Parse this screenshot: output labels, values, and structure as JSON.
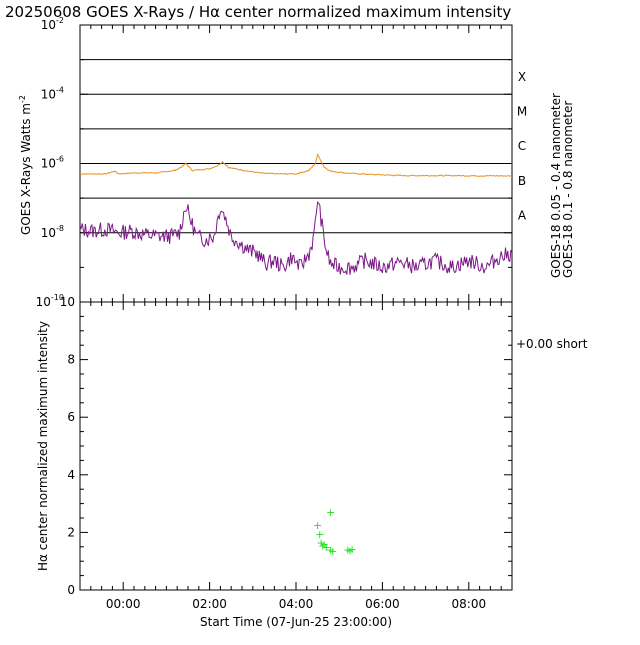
{
  "title": "20250608 GOES X-Rays / Hα center normalized maximum intensity",
  "xaxis": {
    "label": "Start Time (07-Jun-25 23:00:00)",
    "range_hours": [
      -1.0,
      9.0
    ],
    "ticks": [
      {
        "value": 0,
        "label": "00:00"
      },
      {
        "value": 2,
        "label": "02:00"
      },
      {
        "value": 4,
        "label": "04:00"
      },
      {
        "value": 6,
        "label": "06:00"
      },
      {
        "value": 8,
        "label": "08:00"
      }
    ]
  },
  "colors": {
    "goes_long": "#e8901c",
    "goes_short": "#7a1a86",
    "halpha": "#22dd22",
    "axis": "#000000"
  },
  "chart_data": [
    {
      "type": "line",
      "title": "20250608 GOES X-Rays",
      "ylabel_main": "GOES X-Rays Watts m",
      "ylabel_sup": "-2",
      "yscale": "log",
      "ylim_exp": [
        -10,
        -2
      ],
      "yticks": [
        {
          "base": "10",
          "exp": "-2",
          "value_exp": -2
        },
        {
          "base": "10",
          "exp": "-4",
          "value_exp": -4
        },
        {
          "base": "10",
          "exp": "-6",
          "value_exp": -6
        },
        {
          "base": "10",
          "exp": "-8",
          "value_exp": -8
        },
        {
          "base": "10",
          "exp": "-10",
          "value_exp": -10
        }
      ],
      "flare_levels": [
        {
          "label": "X",
          "value_exp": -4
        },
        {
          "label": "M",
          "value_exp": -5
        },
        {
          "label": "C",
          "value_exp": -6
        },
        {
          "label": "B",
          "value_exp": -7
        },
        {
          "label": "A",
          "value_exp": -8
        }
      ],
      "flare_lines_exp": [
        -3,
        -4,
        -5,
        -6,
        -7,
        -8
      ],
      "legend": [
        {
          "name": "GOES-18 0.05 - 0.4 nanometer",
          "series": "short"
        },
        {
          "name": "GOES-18 0.1 - 0.8 nanometer",
          "series": "long"
        }
      ],
      "series": [
        {
          "name": "GOES-18 0.1 - 0.8 nanometer",
          "key": "long",
          "x": [
            -1.0,
            -0.4,
            -0.2,
            -0.1,
            0.3,
            0.8,
            1.2,
            1.35,
            1.45,
            1.6,
            2.0,
            2.2,
            2.3,
            2.45,
            2.8,
            3.2,
            3.6,
            4.0,
            4.3,
            4.45,
            4.5,
            4.55,
            4.65,
            4.8,
            5.2,
            5.8,
            6.5,
            7.5,
            9.0
          ],
          "y_exp": [
            -6.3,
            -6.3,
            -6.22,
            -6.3,
            -6.27,
            -6.27,
            -6.2,
            -6.1,
            -6.0,
            -6.2,
            -6.15,
            -6.05,
            -5.95,
            -6.12,
            -6.2,
            -6.28,
            -6.3,
            -6.3,
            -6.2,
            -6.0,
            -5.75,
            -5.85,
            -6.1,
            -6.22,
            -6.28,
            -6.32,
            -6.35,
            -6.35,
            -6.36
          ]
        },
        {
          "name": "GOES-18 0.05 - 0.4 nanometer",
          "key": "short",
          "x": [
            -1.0,
            -0.7,
            -0.4,
            -0.1,
            0.2,
            0.5,
            0.8,
            1.1,
            1.3,
            1.45,
            1.55,
            1.7,
            1.9,
            2.1,
            2.25,
            2.35,
            2.5,
            2.7,
            2.9,
            3.1,
            3.3,
            3.5,
            3.7,
            3.9,
            4.1,
            4.3,
            4.42,
            4.5,
            4.58,
            4.65,
            4.72,
            4.8,
            5.0,
            5.3,
            5.6,
            6.0,
            6.4,
            6.8,
            7.2,
            7.6,
            8.0,
            8.4,
            8.7,
            9.0
          ],
          "y_exp": [
            -7.9,
            -7.95,
            -7.9,
            -8.0,
            -7.95,
            -8.05,
            -8.1,
            -8.1,
            -8.0,
            -7.2,
            -7.6,
            -8.1,
            -8.2,
            -8.1,
            -7.25,
            -7.5,
            -8.1,
            -8.3,
            -8.5,
            -8.6,
            -8.9,
            -8.8,
            -9.0,
            -8.7,
            -9.0,
            -8.6,
            -8.1,
            -7.0,
            -7.6,
            -8.2,
            -8.6,
            -8.9,
            -9.0,
            -9.0,
            -8.8,
            -9.0,
            -8.85,
            -9.0,
            -8.8,
            -9.0,
            -8.8,
            -9.0,
            -8.7,
            -8.6
          ]
        }
      ]
    },
    {
      "type": "scatter",
      "title": "Hα center normalized maximum intensity",
      "ylabel": "Hα center normalized maximum intensity",
      "ylim": [
        0,
        10
      ],
      "yticks": [
        0,
        2,
        4,
        6,
        8,
        10
      ],
      "legend": {
        "marker": "+",
        "text": "+0.00 short"
      },
      "marker": "+",
      "x": [
        4.5,
        4.55,
        4.58,
        4.62,
        4.65,
        4.7,
        4.8,
        4.85,
        5.2,
        5.25,
        5.3,
        4.8
      ],
      "y": [
        2.25,
        1.95,
        1.65,
        1.55,
        1.6,
        1.5,
        1.4,
        1.35,
        1.4,
        1.38,
        1.42,
        2.7
      ]
    }
  ]
}
